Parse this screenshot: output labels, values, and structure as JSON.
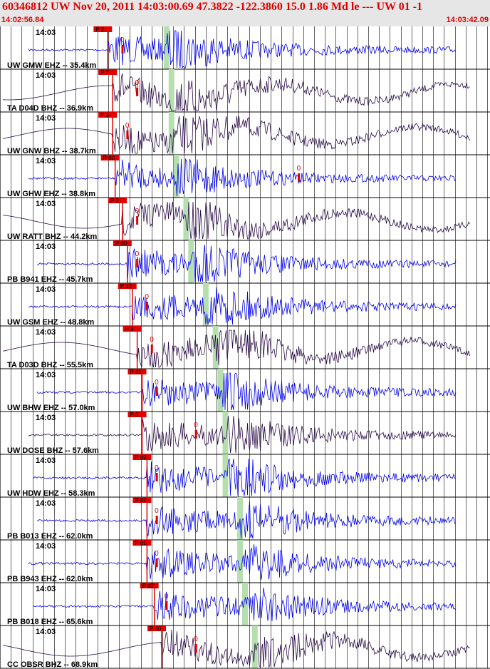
{
  "header": {
    "title": "60346812 UW Nov 20, 2011 14:03:00.69    47.3822 -122.3860 15.0 1.86 Md le --- UW 01   -1",
    "start_time": "14:02:56.84",
    "end_time": "14:03:42.09"
  },
  "colors": {
    "header_text": "#e00000",
    "trace_blue": "#0000ee",
    "trace_dark": "#2a0a4a",
    "pick_red": "#e00000",
    "window_green": "#b6dfb0"
  },
  "chart_data": {
    "type": "line",
    "title": "60346812 UW Nov 20, 2011 14:03:00.69    47.3822 -122.3860 15.0 1.86 Md le --- UW 01   -1",
    "x_range_time": [
      "14:02:56.84",
      "14:03:42.09"
    ],
    "minute_label": "14:03",
    "grid": "vertical lines every second",
    "traces": [
      {
        "label": "UW GMW EHZ -- 35.4km",
        "pick": "P 2",
        "color": "blue",
        "form": "noise",
        "p": 0.22,
        "s": 0.34,
        "o": 0.25
      },
      {
        "label": "TA D04D BHZ -- 36.9km",
        "pick": "P 2",
        "color": "dark",
        "form": "wave",
        "p": 0.23,
        "s": 0.35,
        "o": 0.28
      },
      {
        "label": "UW GNW BHZ -- 38.7km",
        "pick": "P 3",
        "color": "dark",
        "form": "wave",
        "p": 0.23,
        "s": 0.35,
        "o": 0.26
      },
      {
        "label": "UW GHW EHZ -- 38.8km",
        "pick": "P d0",
        "color": "blue",
        "form": "clip",
        "p": 0.235,
        "s": 0.36,
        "o": 0.61
      },
      {
        "label": "UW RATT BHZ -- 44.2km",
        "pick": "P 2",
        "color": "dark",
        "form": "wave",
        "p": 0.25,
        "s": 0.38,
        "o": 0.28
      },
      {
        "label": "PB B941 EHZ -- 45.7km",
        "pick": "P d0",
        "color": "blue",
        "form": "noise",
        "p": 0.26,
        "s": 0.39,
        "o": 0.28
      },
      {
        "label": "UW GSM EHZ -- 48.8km",
        "pick": "P d2",
        "color": "blue",
        "form": "noise",
        "p": 0.27,
        "s": 0.42,
        "o": 0.3
      },
      {
        "label": "TA D03D BHZ -- 55.5km",
        "pick": "P 3",
        "color": "dark",
        "form": "wave",
        "p": 0.28,
        "s": 0.44,
        "o": 0.31
      },
      {
        "label": "UW BHW EHZ -- 57.0km",
        "pick": "P d1",
        "color": "blue",
        "form": "noise",
        "p": 0.29,
        "s": 0.45,
        "o": 0.32
      },
      {
        "label": "UW DOSE BHZ -- 57.6km",
        "pick": "P 0",
        "color": "dark",
        "form": "noise",
        "p": 0.29,
        "s": 0.46,
        "o": 0.4
      },
      {
        "label": "UW HDW EHZ -- 58.3km",
        "pick": "P d2",
        "color": "blue",
        "form": "noise",
        "p": 0.3,
        "s": 0.46,
        "o": 0.32
      },
      {
        "label": "PB B013 EHZ -- 62.0km",
        "pick": "P d2",
        "color": "blue",
        "form": "noise",
        "p": 0.3,
        "s": 0.49,
        "o": 0.32
      },
      {
        "label": "PB B943 EHZ -- 62.0km",
        "pick": "P d1",
        "color": "blue",
        "form": "noise",
        "p": 0.3,
        "s": 0.49,
        "o": 0.32
      },
      {
        "label": "PB B018 EHZ -- 65.6km",
        "pick": "P d2",
        "color": "blue",
        "form": "noise",
        "p": 0.315,
        "s": 0.5,
        "o": 0.34
      },
      {
        "label": "CC OBSR BHZ -- 68.9km",
        "pick": "P d0",
        "color": "dark",
        "form": "wave",
        "p": 0.33,
        "s": 0.52,
        "o": 0.4
      }
    ]
  }
}
